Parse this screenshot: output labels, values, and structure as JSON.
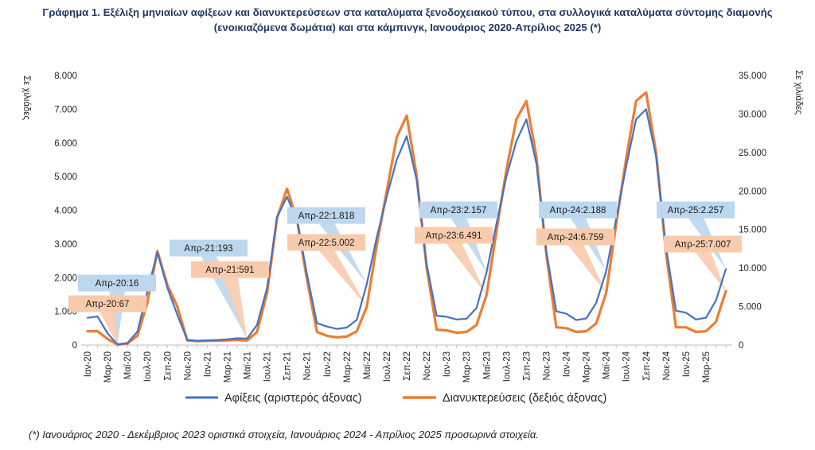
{
  "title": "Γράφημα 1. Εξέλιξη μηνιαίων αφίξεων και διανυκτερεύσεων στα καταλύματα ξενοδοχειακού τύπου, στα συλλογικά καταλύματα σύντομης διαμονής (ενοικιαζόμενα δωμάτια) και στα κάμπινγκ, Ιανουάριος 2020-Απρίλιος 2025 (*)",
  "footnote": "(*) Ιανουάριος 2020 - Δεκέμβριος 2023 οριστικά στοιχεία, Ιανουάριος 2024 - Απρίλιος 2025 προσωρινά στοιχεία.",
  "chart_data": {
    "type": "line",
    "left_axis_label": "Σε χιλιάδες",
    "right_axis_label": "Σε χιλιάδες",
    "left_ylim": [
      0,
      8000
    ],
    "right_ylim": [
      0,
      35000
    ],
    "left_ticks": [
      "0",
      "1.000",
      "2.000",
      "3.000",
      "4.000",
      "5.000",
      "6.000",
      "7.000",
      "8.000"
    ],
    "right_ticks": [
      "0",
      "5.000",
      "10.000",
      "15.000",
      "20.000",
      "25.000",
      "30.000",
      "35.000"
    ],
    "x_tick_labels": [
      "Ιαν-20",
      "Μαρ-20",
      "Μαϊ-20",
      "Ιουλ-20",
      "Σεπ-20",
      "Νοε-20",
      "Ιαν-21",
      "Μαρ-21",
      "Μαϊ-21",
      "Ιουλ-21",
      "Σεπ-21",
      "Νοε-21",
      "Ιαν-22",
      "Μαρ-22",
      "Μαϊ-22",
      "Ιουλ-22",
      "Σεπ-22",
      "Νοε-22",
      "Ιαν-23",
      "Μαρ-23",
      "Μαϊ-23",
      "Ιουλ-23",
      "Σεπ-23",
      "Νοε-23",
      "Ιαν-24",
      "Μαρ-24",
      "Μαϊ-24",
      "Ιουλ-24",
      "Σεπ-24",
      "Νοε-24",
      "Ιαν-25",
      "Μαρ-25"
    ],
    "grid": false,
    "legend_position": "bottom",
    "series": [
      {
        "name": "Αφίξεις (αριστερός άξονας)",
        "axis": "left",
        "color": "#4472c4",
        "values": [
          810,
          850,
          350,
          16,
          60,
          400,
          1600,
          2750,
          1700,
          900,
          150,
          130,
          140,
          150,
          170,
          200,
          193,
          600,
          1700,
          3800,
          4400,
          3700,
          2100,
          650,
          550,
          480,
          520,
          750,
          1818,
          3200,
          4400,
          5500,
          6200,
          4900,
          2400,
          870,
          840,
          760,
          780,
          1100,
          2157,
          3600,
          5000,
          6050,
          6700,
          5400,
          2800,
          1000,
          930,
          740,
          790,
          1250,
          2188,
          3750,
          5300,
          6700,
          7000,
          5600,
          2900,
          1020,
          960,
          760,
          810,
          1320,
          2257
        ]
      },
      {
        "name": "Διανυκτερεύσεις (δεξιός άξονας)",
        "axis": "right",
        "color": "#ed7d31",
        "values": [
          1800,
          1800,
          800,
          67,
          200,
          1200,
          5500,
          12200,
          7800,
          5000,
          600,
          500,
          550,
          550,
          600,
          650,
          591,
          1700,
          6800,
          16500,
          20300,
          16300,
          8500,
          1700,
          1200,
          1000,
          1100,
          1800,
          5002,
          13000,
          20000,
          27000,
          29800,
          22000,
          10000,
          2000,
          1900,
          1600,
          1700,
          2600,
          6491,
          14800,
          22800,
          29300,
          31700,
          24500,
          11800,
          2300,
          2200,
          1700,
          1800,
          2800,
          6759,
          15700,
          24200,
          31700,
          32800,
          25000,
          12000,
          2300,
          2300,
          1700,
          1800,
          3000,
          7007
        ]
      }
    ],
    "annotations": [
      {
        "series": "Αφίξεις (αριστερός άξονας)",
        "index": 3,
        "label": "Απρ-20:16"
      },
      {
        "series": "Διανυκτερεύσεις (δεξιός άξονας)",
        "index": 3,
        "label": "Απρ-20:67"
      },
      {
        "series": "Αφίξεις (αριστερός άξονας)",
        "index": 16,
        "label": "Απρ-21:193"
      },
      {
        "series": "Διανυκτερεύσεις (δεξιός άξονας)",
        "index": 16,
        "label": "Απρ-21:591"
      },
      {
        "series": "Αφίξεις (αριστερός άξονας)",
        "index": 28,
        "label": "Απρ-22:1.818"
      },
      {
        "series": "Διανυκτερεύσεις (δεξιός άξονας)",
        "index": 28,
        "label": "Απρ-22:5.002"
      },
      {
        "series": "Αφίξεις (αριστερός άξονας)",
        "index": 40,
        "label": "Απρ-23:2.157"
      },
      {
        "series": "Διανυκτερεύσεις (δεξιός άξονας)",
        "index": 40,
        "label": "Απρ-23:6.491"
      },
      {
        "series": "Αφίξεις (αριστερός άξονας)",
        "index": 52,
        "label": "Απρ-24:2.188"
      },
      {
        "series": "Διανυκτερεύσεις (δεξιός άξονας)",
        "index": 52,
        "label": "Απρ-24:6.759"
      },
      {
        "series": "Αφίξεις (αριστερός άξονας)",
        "index": 64,
        "label": "Απρ-25:2.257"
      },
      {
        "series": "Διανυκτερεύσεις (δεξιός άξονας)",
        "index": 64,
        "label": "Απρ-25:7.007"
      }
    ]
  }
}
